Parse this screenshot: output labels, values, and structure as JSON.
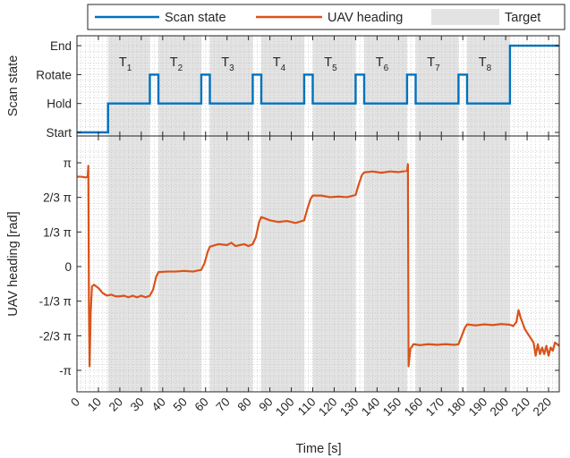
{
  "colors": {
    "scan_state": "#0072BD",
    "uav_heading": "#D95319",
    "target": "#e3e3e3",
    "grid": "#bdbdbd"
  },
  "legend": {
    "scan_label": "Scan state",
    "heading_label": "UAV heading",
    "target_label": "Target"
  },
  "chart_data": [
    {
      "type": "line",
      "panel": "top",
      "ylabel": "Scan state",
      "ytick_labels": [
        "Start",
        "Hold",
        "Rotate",
        "End"
      ],
      "ylim": [
        0,
        3
      ],
      "xlim": [
        0,
        225
      ],
      "grid": true,
      "targets": [
        {
          "label": "T",
          "sub": "1",
          "start": 14.5,
          "end": 34
        },
        {
          "label": "T",
          "sub": "2",
          "start": 38,
          "end": 58
        },
        {
          "label": "T",
          "sub": "3",
          "start": 62,
          "end": 82
        },
        {
          "label": "T",
          "sub": "4",
          "start": 86,
          "end": 106
        },
        {
          "label": "T",
          "sub": "5",
          "start": 110,
          "end": 130
        },
        {
          "label": "T",
          "sub": "6",
          "start": 134,
          "end": 154
        },
        {
          "label": "T",
          "sub": "7",
          "start": 158,
          "end": 178
        },
        {
          "label": "T",
          "sub": "8",
          "start": 182,
          "end": 202
        }
      ],
      "series": [
        {
          "name": "Scan state",
          "points": [
            [
              0,
              0
            ],
            [
              14.5,
              0
            ],
            [
              14.5,
              1
            ],
            [
              34,
              1
            ],
            [
              34,
              2
            ],
            [
              38,
              2
            ],
            [
              38,
              1
            ],
            [
              58,
              1
            ],
            [
              58,
              2
            ],
            [
              62,
              2
            ],
            [
              62,
              1
            ],
            [
              82,
              1
            ],
            [
              82,
              2
            ],
            [
              86,
              2
            ],
            [
              86,
              1
            ],
            [
              106,
              1
            ],
            [
              106,
              2
            ],
            [
              110,
              2
            ],
            [
              110,
              1
            ],
            [
              130,
              1
            ],
            [
              130,
              2
            ],
            [
              134,
              2
            ],
            [
              134,
              1
            ],
            [
              154,
              1
            ],
            [
              154,
              2
            ],
            [
              158,
              2
            ],
            [
              158,
              1
            ],
            [
              178,
              1
            ],
            [
              178,
              2
            ],
            [
              182,
              2
            ],
            [
              182,
              1
            ],
            [
              202,
              1
            ],
            [
              202,
              3
            ],
            [
              225,
              3
            ]
          ]
        }
      ]
    },
    {
      "type": "line",
      "panel": "bottom",
      "xlabel": "Time [s]",
      "ylabel": "UAV heading [rad]",
      "xticks": [
        0,
        10,
        20,
        30,
        40,
        50,
        60,
        70,
        80,
        90,
        100,
        110,
        120,
        130,
        140,
        150,
        160,
        170,
        180,
        190,
        200,
        210,
        220
      ],
      "ytick_labels": [
        "-π",
        "-2/3 π",
        "-1/3 π",
        "0",
        "1/3 π",
        "2/3 π",
        "π"
      ],
      "ylim": [
        -3.3,
        3.4
      ],
      "xlim": [
        0,
        225
      ],
      "grid": true,
      "series": [
        {
          "name": "UAV heading",
          "points": [
            [
              0,
              2.72
            ],
            [
              2,
              2.72
            ],
            [
              4,
              2.7
            ],
            [
              5,
              2.72
            ],
            [
              5.3,
              3.05
            ],
            [
              5.6,
              -1.3
            ],
            [
              5.9,
              -3.02
            ],
            [
              6.4,
              -1.4
            ],
            [
              7,
              -0.6
            ],
            [
              8,
              -0.55
            ],
            [
              10,
              -0.65
            ],
            [
              12,
              -0.8
            ],
            [
              14,
              -0.88
            ],
            [
              16,
              -0.85
            ],
            [
              18,
              -0.9
            ],
            [
              20,
              -0.9
            ],
            [
              22,
              -0.88
            ],
            [
              24,
              -0.93
            ],
            [
              26,
              -0.88
            ],
            [
              28,
              -0.93
            ],
            [
              30,
              -0.88
            ],
            [
              32,
              -0.93
            ],
            [
              34,
              -0.88
            ],
            [
              35.5,
              -0.7
            ],
            [
              37,
              -0.3
            ],
            [
              38,
              -0.17
            ],
            [
              42,
              -0.15
            ],
            [
              46,
              -0.15
            ],
            [
              50,
              -0.13
            ],
            [
              54,
              -0.15
            ],
            [
              58,
              -0.1
            ],
            [
              59.5,
              0.1
            ],
            [
              61,
              0.45
            ],
            [
              62,
              0.6
            ],
            [
              66,
              0.68
            ],
            [
              70,
              0.65
            ],
            [
              72,
              0.72
            ],
            [
              74,
              0.62
            ],
            [
              78,
              0.68
            ],
            [
              80,
              0.62
            ],
            [
              82,
              0.68
            ],
            [
              83.5,
              0.9
            ],
            [
              85,
              1.35
            ],
            [
              86,
              1.5
            ],
            [
              88,
              1.45
            ],
            [
              90,
              1.4
            ],
            [
              94,
              1.35
            ],
            [
              98,
              1.38
            ],
            [
              102,
              1.32
            ],
            [
              106,
              1.4
            ],
            [
              107.5,
              1.75
            ],
            [
              109,
              2.05
            ],
            [
              110,
              2.15
            ],
            [
              114,
              2.15
            ],
            [
              118,
              2.1
            ],
            [
              122,
              2.12
            ],
            [
              126,
              2.1
            ],
            [
              130,
              2.17
            ],
            [
              131.5,
              2.5
            ],
            [
              133,
              2.78
            ],
            [
              134,
              2.85
            ],
            [
              138,
              2.88
            ],
            [
              142,
              2.84
            ],
            [
              146,
              2.88
            ],
            [
              150,
              2.86
            ],
            [
              154,
              2.9
            ],
            [
              154.4,
              3.1
            ],
            [
              154.7,
              -3.02
            ],
            [
              155.5,
              -2.5
            ],
            [
              157,
              -2.35
            ],
            [
              160,
              -2.38
            ],
            [
              164,
              -2.35
            ],
            [
              168,
              -2.37
            ],
            [
              172,
              -2.35
            ],
            [
              176,
              -2.37
            ],
            [
              178,
              -2.35
            ],
            [
              179.5,
              -2.1
            ],
            [
              181,
              -1.85
            ],
            [
              182,
              -1.75
            ],
            [
              186,
              -1.78
            ],
            [
              190,
              -1.75
            ],
            [
              194,
              -1.77
            ],
            [
              198,
              -1.74
            ],
            [
              202,
              -1.76
            ],
            [
              203.5,
              -1.8
            ],
            [
              205,
              -1.68
            ],
            [
              206,
              -1.32
            ],
            [
              207,
              -1.55
            ],
            [
              209,
              -1.9
            ],
            [
              211,
              -2.1
            ],
            [
              213,
              -2.3
            ],
            [
              214,
              -2.7
            ],
            [
              215,
              -2.35
            ],
            [
              216,
              -2.65
            ],
            [
              217,
              -2.45
            ],
            [
              218,
              -2.65
            ],
            [
              219,
              -2.4
            ],
            [
              220,
              -2.7
            ],
            [
              221,
              -2.45
            ],
            [
              222,
              -2.55
            ],
            [
              223,
              -2.3
            ],
            [
              225,
              -2.4
            ]
          ]
        }
      ]
    }
  ]
}
